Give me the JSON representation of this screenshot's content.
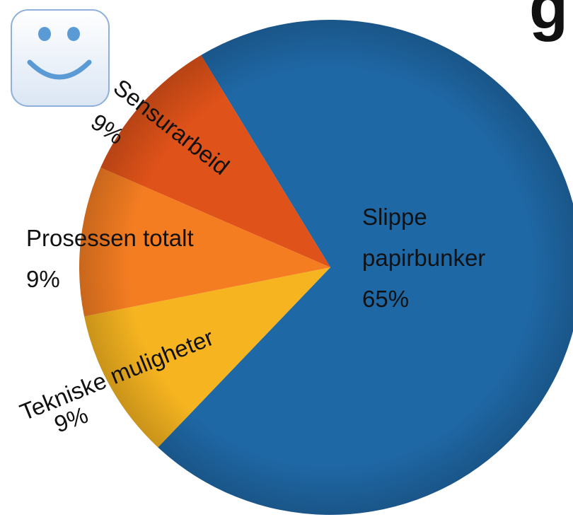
{
  "chart_data": {
    "type": "pie",
    "title": "g",
    "categories": [
      "Slippe papirbunker",
      "Tekniske muligheter",
      "Prosessen totalt",
      "Sensurarbeid"
    ],
    "values": [
      65,
      9,
      9,
      9
    ],
    "value_labels": [
      "65%",
      "9%",
      "9%",
      "9%"
    ],
    "colors": [
      "#1f68a6",
      "#f6b420",
      "#f47d22",
      "#df5219"
    ]
  }
}
